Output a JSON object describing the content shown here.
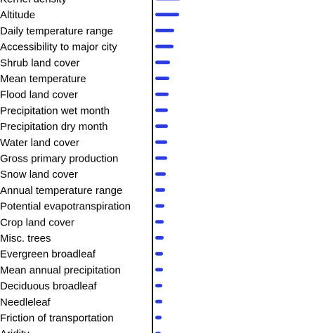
{
  "chart_data": {
    "type": "bar",
    "orientation": "horizontal",
    "bar_color": "#2b3de0",
    "axis_color": "#000000",
    "categories": [
      "Kernel density",
      "Altitude",
      "Daily temperature range",
      "Accessibility to major city",
      "Shrub land cover",
      "Mean temperature",
      "Flood land cover",
      "Precipitation wet month",
      "Precipitation dry month",
      "Water land cover",
      "Gross primary production",
      "Snow land cover",
      "Annual temperature range",
      "Potential evapotranspiration",
      "Crop land cover",
      "Misc. trees",
      "Evergreen broadleaf",
      "Mean annual precipitation",
      "Deciduous broadleaf",
      "Needleleaf",
      "Friction of transportation",
      "Aridity"
    ],
    "values": [
      36,
      34,
      27,
      26,
      21,
      20,
      19,
      18,
      18,
      17,
      17,
      15,
      14,
      13,
      12,
      12,
      11,
      11,
      10,
      10,
      9,
      8
    ]
  }
}
